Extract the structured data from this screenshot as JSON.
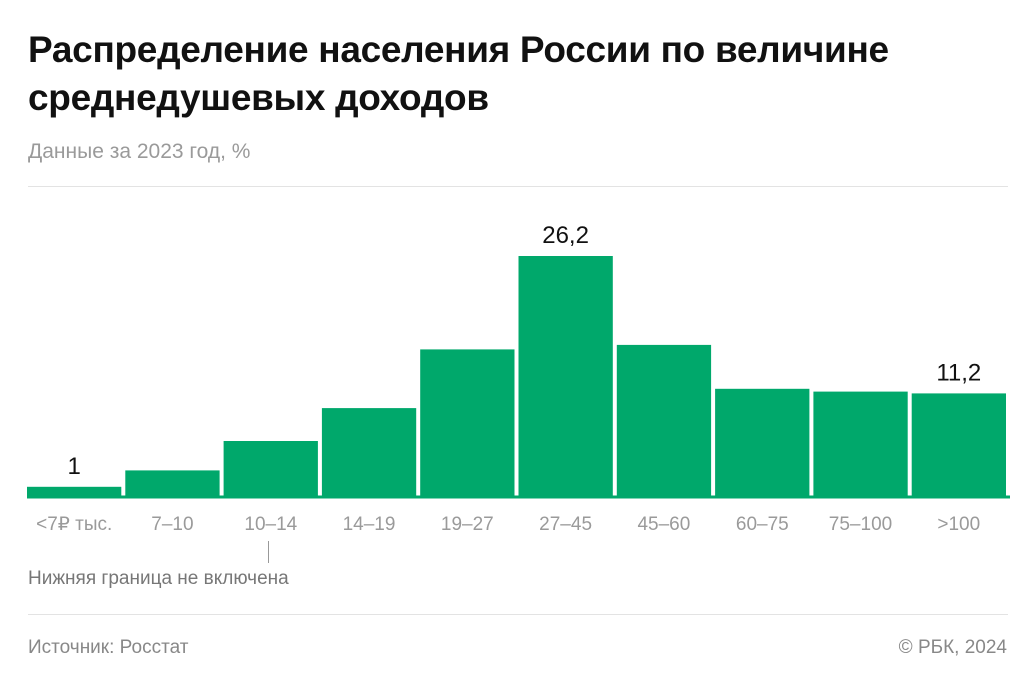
{
  "header": {
    "title": "Распределение населения России по величине среднедушевых доходов",
    "subtitle": "Данные за 2023 год, %"
  },
  "colors": {
    "bar": "#00a86b",
    "axis": "#00a86b",
    "tick": "#9a9a9a",
    "label": "#111111"
  },
  "chart_data": {
    "type": "bar",
    "title": "Распределение населения России по величине среднедушевых доходов",
    "subtitle": "Данные за 2023 год, %",
    "xlabel": "",
    "ylabel": "",
    "categories": [
      "<7₽ тыс.",
      "7–10",
      "10–14",
      "14–19",
      "19–27",
      "27–45",
      "45–60",
      "60–75",
      "75–100",
      ">100"
    ],
    "values": [
      1,
      2.8,
      6.0,
      9.6,
      16.0,
      26.2,
      16.5,
      11.7,
      11.4,
      11.2
    ],
    "data_labels": [
      {
        "index": 0,
        "text": "1"
      },
      {
        "index": 5,
        "text": "26,2"
      },
      {
        "index": 9,
        "text": "11,2"
      }
    ],
    "ylim": [
      0,
      30
    ],
    "grid": false,
    "legend": "none"
  },
  "annotations": {
    "note": "Нижняя граница не включена"
  },
  "footer": {
    "source": "Источник: Росстат",
    "copyright": "© РБК, 2024"
  }
}
